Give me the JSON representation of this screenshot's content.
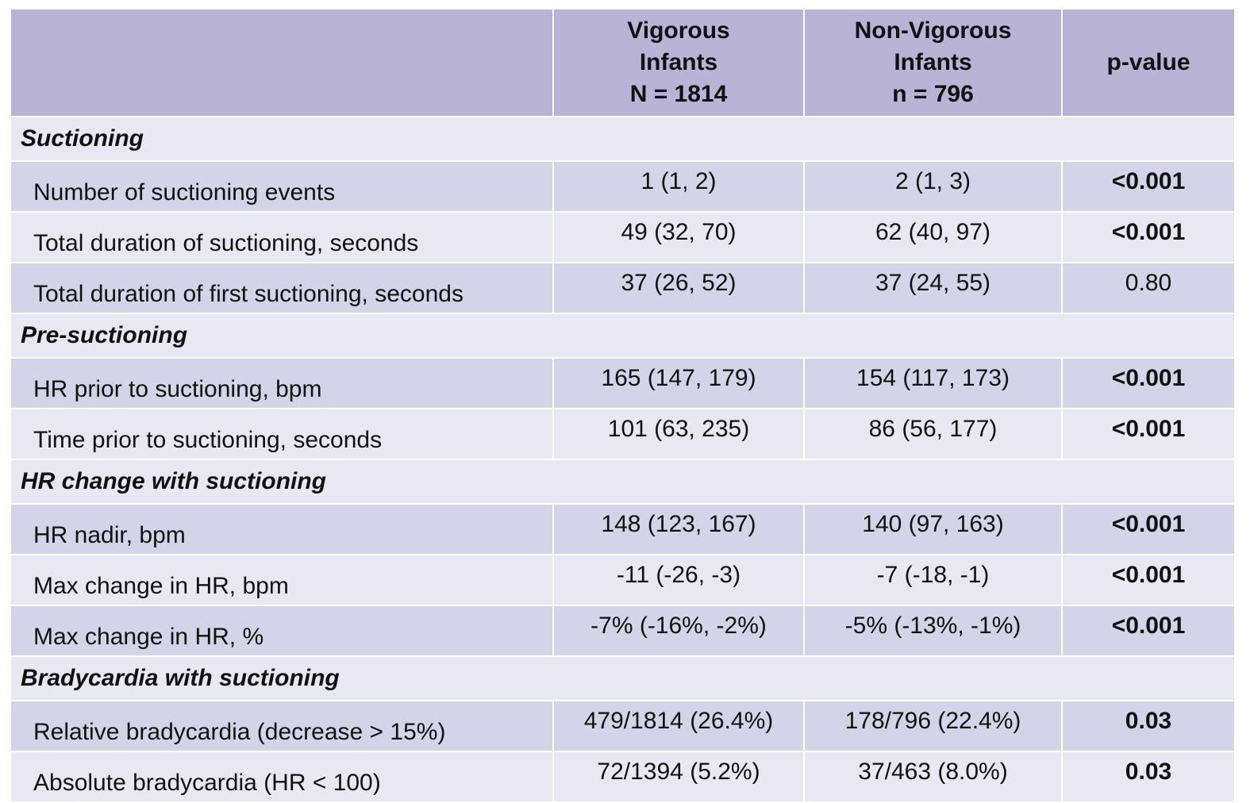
{
  "header": {
    "col0": "",
    "col1": [
      "Vigorous",
      "Infants",
      "N = 1814"
    ],
    "col2": [
      "Non-Vigorous",
      "Infants",
      "n = 796"
    ],
    "col3": "p-value"
  },
  "sections": [
    {
      "title": "Suctioning",
      "rows": [
        {
          "label": "Number of suctioning events",
          "vigorous": "1 (1, 2)",
          "non_vigorous": "2 (1, 3)",
          "p": "<0.001",
          "bold": true
        },
        {
          "label": "Total duration of suctioning, seconds",
          "vigorous": "49 (32, 70)",
          "non_vigorous": "62 (40, 97)",
          "p": "<0.001",
          "bold": true
        },
        {
          "label": "Total duration of first suctioning, seconds",
          "vigorous": "37 (26, 52)",
          "non_vigorous": "37 (24, 55)",
          "p": "0.80",
          "bold": false
        }
      ]
    },
    {
      "title": "Pre-suctioning",
      "rows": [
        {
          "label": "HR prior to suctioning, bpm",
          "vigorous": "165 (147, 179)",
          "non_vigorous": "154 (117, 173)",
          "p": "<0.001",
          "bold": true
        },
        {
          "label": "Time prior to suctioning, seconds",
          "vigorous": "101 (63, 235)",
          "non_vigorous": "86 (56, 177)",
          "p": "<0.001",
          "bold": true
        }
      ]
    },
    {
      "title": "HR change with suctioning",
      "rows": [
        {
          "label": "HR nadir, bpm",
          "vigorous": "148 (123, 167)",
          "non_vigorous": "140 (97, 163)",
          "p": "<0.001",
          "bold": true
        },
        {
          "label": "Max change in HR, bpm",
          "vigorous": "-11 (-26, -3)",
          "non_vigorous": "-7 (-18, -1)",
          "p": "<0.001",
          "bold": true
        },
        {
          "label": "Max change in HR, %",
          "vigorous": "-7% (-16%, -2%)",
          "non_vigorous": "-5% (-13%, -1%)",
          "p": "<0.001",
          "bold": true
        }
      ]
    },
    {
      "title": "Bradycardia with suctioning",
      "rows": [
        {
          "label": "Relative bradycardia (decrease > 15%)",
          "vigorous": "479/1814 (26.4%)",
          "non_vigorous": "178/796 (22.4%)",
          "p": "0.03",
          "bold": true
        },
        {
          "label": "Absolute bradycardia (HR < 100)",
          "vigorous": "72/1394 (5.2%)",
          "non_vigorous": "37/463 (8.0%)",
          "p": "0.03",
          "bold": true
        }
      ]
    }
  ],
  "colors": {
    "header_bg": "#b9b3d6",
    "row_dark": "#d5d3e7",
    "row_light": "#e9e8f2"
  }
}
